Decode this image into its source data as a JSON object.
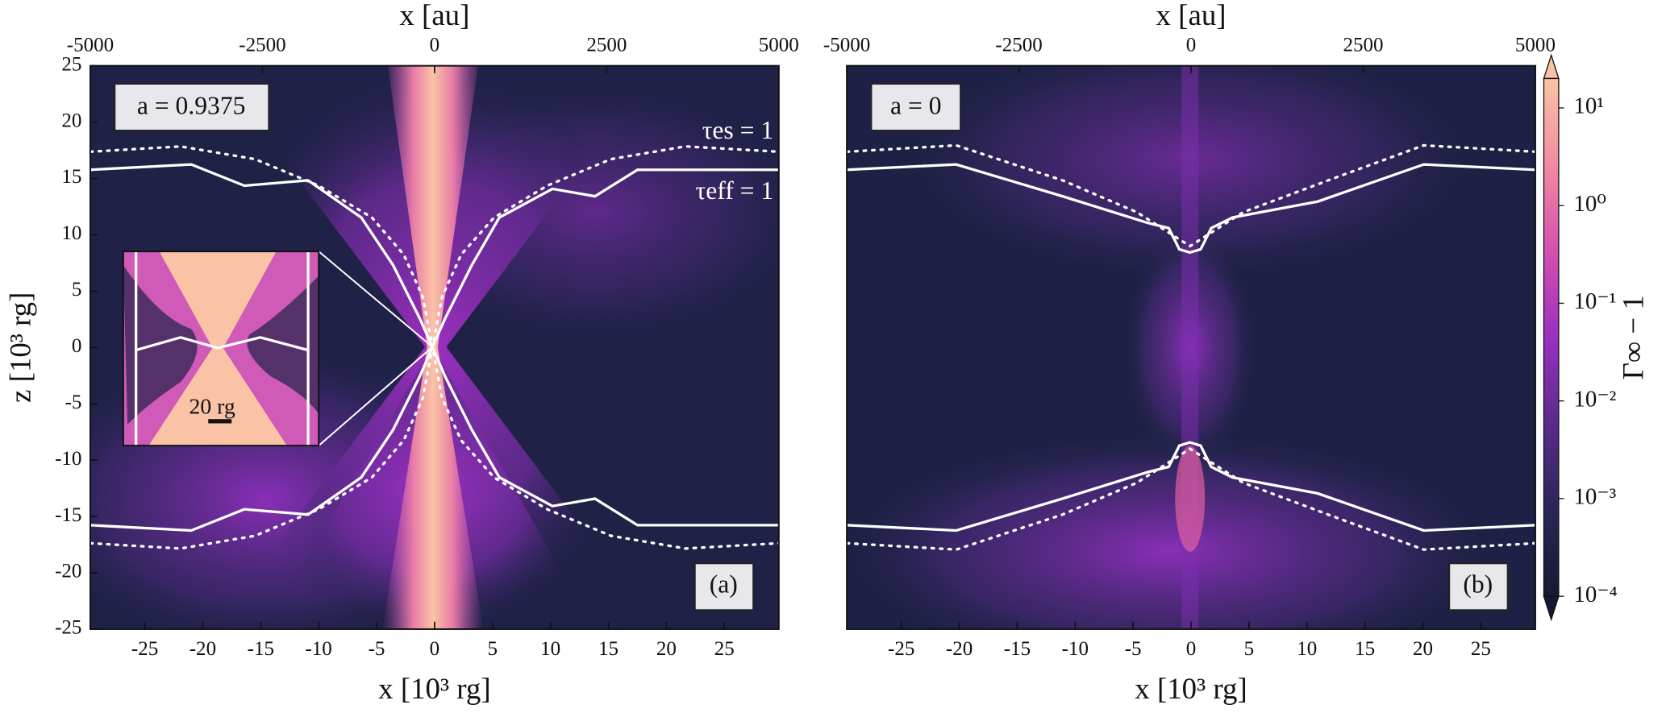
{
  "chart_data": [
    {
      "type": "heatmap",
      "x2label": "x [au]",
      "x2lim": [
        -5000,
        5000
      ],
      "x2ticks": [
        -5000,
        -2500,
        0,
        2500,
        5000
      ],
      "xlabel": "x [10³ rg]",
      "xlim": [
        -29.7,
        29.7
      ],
      "xticks": [
        -25,
        -20,
        -15,
        -10,
        -5,
        0,
        5,
        10,
        15,
        20,
        25
      ],
      "ylabel": "z [10³ rg]",
      "ylim": [
        -25,
        25
      ],
      "yticks": [
        25,
        20,
        15,
        10,
        5,
        0,
        -5,
        -10,
        -15,
        -20,
        -25
      ],
      "label_box": "a = 0.9375",
      "panel_label": "(a)",
      "contour_labels": [
        "τes = 1",
        "τeff = 1"
      ],
      "scale_bar": "20 rg"
    },
    {
      "type": "heatmap",
      "x2label": "x [au]",
      "x2lim": [
        -5000,
        5000
      ],
      "x2ticks": [
        -5000,
        -2500,
        0,
        2500,
        5000
      ],
      "xlabel": "x [10³ rg]",
      "xlim": [
        -29.7,
        29.7
      ],
      "xticks": [
        -25,
        -20,
        -15,
        -10,
        -5,
        0,
        5,
        10,
        15,
        20,
        25
      ],
      "ylim": [
        -25,
        25
      ],
      "label_box": "a = 0",
      "panel_label": "(b)",
      "colorbar": {
        "label": "Γ∞ − 1",
        "scale": "log",
        "lim": [
          0.0001,
          20
        ],
        "colormap": [
          "#111a33",
          "#2a2657",
          "#5b2a8c",
          "#9b2fc0",
          "#d44fb0",
          "#f28aa0",
          "#fbc3a6"
        ],
        "ticks": [
          {
            "value": 0.0001,
            "label": "10⁻⁴"
          },
          {
            "value": 0.001,
            "label": "10⁻³"
          },
          {
            "value": 0.01,
            "label": "10⁻²"
          },
          {
            "value": 0.1,
            "label": "10⁻¹"
          },
          {
            "value": 1,
            "label": "10⁰"
          },
          {
            "value": 10,
            "label": "10¹"
          }
        ]
      }
    }
  ]
}
